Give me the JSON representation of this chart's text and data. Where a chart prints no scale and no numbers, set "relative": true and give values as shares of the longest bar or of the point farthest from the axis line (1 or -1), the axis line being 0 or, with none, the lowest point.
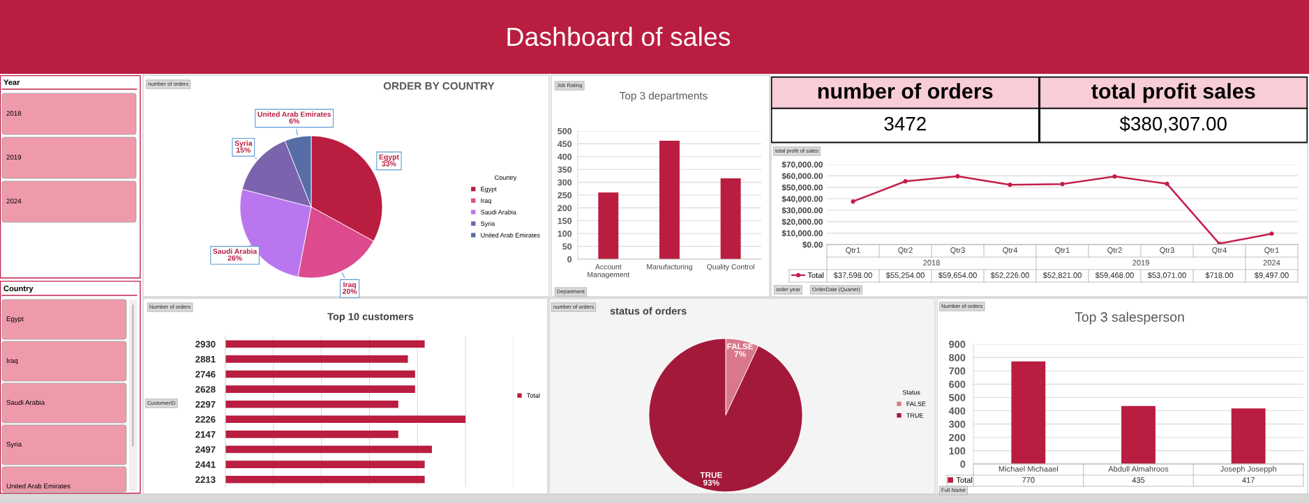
{
  "chart_data": [
    {
      "type": "other",
      "title": "Dashboard of sales"
    },
    {
      "type": "other",
      "title": "Year",
      "categories": [
        "2018",
        "2019",
        "2024"
      ]
    },
    {
      "type": "other",
      "title": "Country",
      "categories": [
        "Egypt",
        "Iraq",
        "Saudi Arabia",
        "Syria",
        "United Arab Emirates"
      ]
    },
    {
      "type": "pie",
      "title": "ORDER BY COUNTRY",
      "categories": [
        "Egypt",
        "Iraq",
        "Saudi Arabia",
        "Syria",
        "United Arab Emirates"
      ],
      "values": [
        33,
        20,
        26,
        15,
        6
      ],
      "value_labels": [
        "33%",
        "20%",
        "26%",
        "15%",
        "6%"
      ],
      "colors": [
        "#b91d40",
        "#dd4a8d",
        "#b976ee",
        "#7b63ae",
        "#566da6"
      ],
      "legend": "right",
      "legend_title": "Country",
      "annotations": [
        "number of orders"
      ]
    },
    {
      "type": "bar",
      "title": "Top 3 departments",
      "categories": [
        "Account Management",
        "Manufacturing",
        "Quality Control"
      ],
      "values": [
        260,
        462,
        315
      ],
      "color": "#b91d40",
      "ylim": [
        0,
        500
      ],
      "yticks": [
        0,
        50,
        100,
        150,
        200,
        250,
        300,
        350,
        400,
        450,
        500
      ],
      "grid": "y",
      "annotations": [
        "Job Rating",
        "Department"
      ]
    },
    {
      "type": "other",
      "categories": [
        "number of orders",
        "total profit sales"
      ],
      "value_labels": [
        "3472",
        "$380,307.00"
      ]
    },
    {
      "type": "line",
      "categories": [
        "Qtr1",
        "Qtr2",
        "Qtr3",
        "Qtr4",
        "Qtr1",
        "Qtr2",
        "Qtr3",
        "Qtr4",
        "Qtr1"
      ],
      "series": [
        {
          "name": "Total",
          "color": "#c41e4a",
          "values": [
            37598,
            55254,
            59654,
            52226,
            52821,
            59468,
            53071,
            718,
            9497
          ],
          "value_labels": [
            "$37,598.00",
            "$55,254.00",
            "$59,654.00",
            "$52,226.00",
            "$52,821.00",
            "$59,468.00",
            "$53,071.00",
            "$718.00",
            "$9,497.00"
          ]
        }
      ],
      "ylim": [
        0,
        70000
      ],
      "yticks": [
        {
          "value": 0,
          "label": "$0.00"
        },
        {
          "value": 10000,
          "label": "$10,000.00"
        },
        {
          "value": 20000,
          "label": "$20,000.00"
        },
        {
          "value": 30000,
          "label": "$30,000.00"
        },
        {
          "value": 40000,
          "label": "$40,000.00"
        },
        {
          "value": 50000,
          "label": "$50,000.00"
        },
        {
          "value": 60000,
          "label": "$60,000.00"
        },
        {
          "value": 70000,
          "label": "$70,000.00"
        }
      ],
      "grid": "y",
      "marker": "circle",
      "legend": "bottom",
      "annotations": [
        "total profit of sales",
        "order year",
        "OrderDate (Quarter)",
        "2018",
        "2019",
        "2024"
      ]
    },
    {
      "type": "bar",
      "orientation": "horizontal",
      "relative": true,
      "title": "Top 10 customers",
      "categories": [
        "2930",
        "2881",
        "2746",
        "2628",
        "2297",
        "2226",
        "2147",
        "2497",
        "2441",
        "2213"
      ],
      "series": [
        {
          "name": "Total",
          "color": "#b91d40",
          "values": [
            0.83,
            0.76,
            0.79,
            0.79,
            0.72,
            1,
            0.72,
            0.86,
            0.83,
            0.83
          ]
        }
      ],
      "grid": "x",
      "legend": "right",
      "annotations": [
        "Number of orders",
        "CustomerID"
      ]
    },
    {
      "type": "pie",
      "title": "status of orders",
      "categories": [
        "FALSE",
        "TRUE"
      ],
      "values": [
        7,
        93
      ],
      "value_labels": [
        "7%",
        "93%"
      ],
      "colors": [
        "#d8788a",
        "#a3193a"
      ],
      "legend": "right",
      "legend_title": "Status",
      "annotations": [
        "number of orders"
      ]
    },
    {
      "type": "bar",
      "title": "Top 3 salesperson",
      "categories": [
        "Michael Michaael",
        "Abdull Almahroos",
        "Joseph Josepph"
      ],
      "series": [
        {
          "name": "Total",
          "color": "#b91d40",
          "values": [
            770,
            435,
            417
          ]
        }
      ],
      "ylim": [
        0,
        900
      ],
      "yticks": [
        0,
        100,
        200,
        300,
        400,
        500,
        600,
        700,
        800,
        900
      ],
      "grid": "y",
      "data_labels": true,
      "legend": "bottom",
      "annotations": [
        "Number of orders",
        "Full Name"
      ]
    }
  ]
}
